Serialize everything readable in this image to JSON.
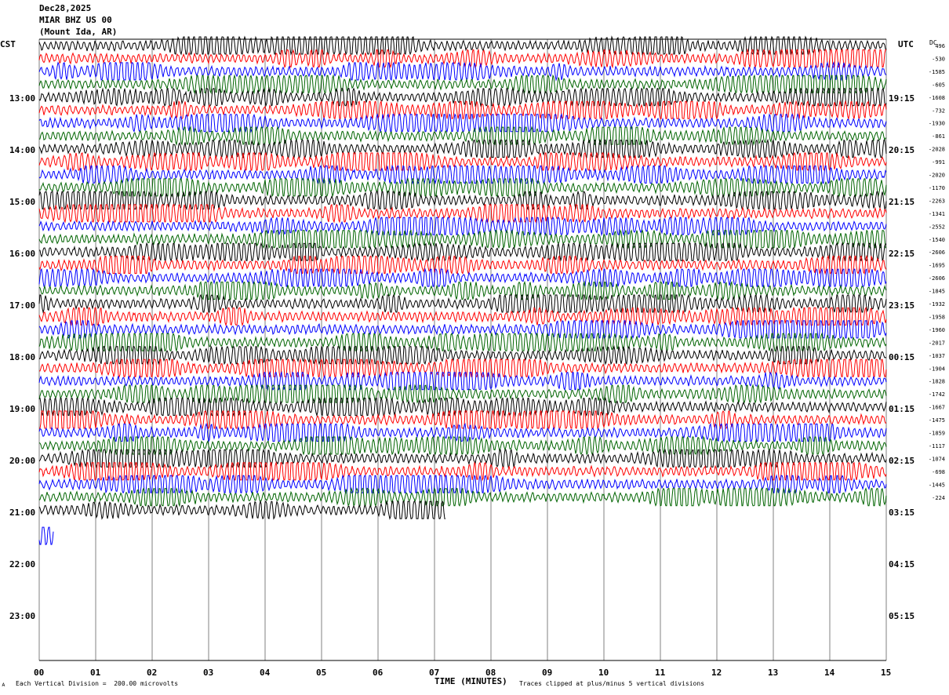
{
  "header": {
    "date": "Dec28,2025",
    "station": "MIAR BHZ US 00",
    "location": "(Mount Ida, AR)"
  },
  "left_tz": "CST",
  "right_tz": "UTC",
  "dc_label": "DC",
  "footer": {
    "scale": "Each Vertical Division =  200.00 microvolts",
    "xlabel": "TIME (MINUTES)",
    "clip": "Traces clipped at plus/minus 5 vertical divisions"
  },
  "chart_data": {
    "type": "line",
    "title": "",
    "xlabel": "TIME (MINUTES)",
    "ylabel": "",
    "xlim": [
      0,
      15
    ],
    "x_ticks": [
      "00",
      "01",
      "02",
      "03",
      "04",
      "05",
      "06",
      "07",
      "08",
      "09",
      "10",
      "11",
      "12",
      "13",
      "14",
      "15"
    ],
    "grid": true,
    "left_hour_labels": [
      "13:00",
      "14:00",
      "15:00",
      "16:00",
      "17:00",
      "18:00",
      "19:00",
      "20:00",
      "21:00",
      "22:00",
      "23:00"
    ],
    "right_hour_labels": [
      "19:15",
      "20:15",
      "21:15",
      "22:15",
      "23:15",
      "00:15",
      "01:15",
      "02:15",
      "03:15",
      "04:15",
      "05:15"
    ],
    "series_colors": [
      "#000000",
      "#ff0000",
      "#0000ff",
      "#006400"
    ],
    "trace_count_full": 36,
    "last_trace_end_minute": 7.2,
    "partial_trace_end_minute": 0.25,
    "dc_offsets": [
      "496",
      "-530",
      "-1585",
      "-605",
      "-1608",
      "-732",
      "-1930",
      "-861",
      "-2028",
      "-991",
      "-2020",
      "-1170",
      "-2263",
      "-1341",
      "-2552",
      "-1540",
      "-2606",
      "-1695",
      "-2606",
      "-1845",
      "-1932",
      "-1958",
      "-1960",
      "-2017",
      "-1037",
      "-1904",
      "-1828",
      "-1742",
      "-1667",
      "-1475",
      "-1859",
      "-1117",
      "-1074",
      "-698",
      "-1445",
      "-224"
    ]
  }
}
